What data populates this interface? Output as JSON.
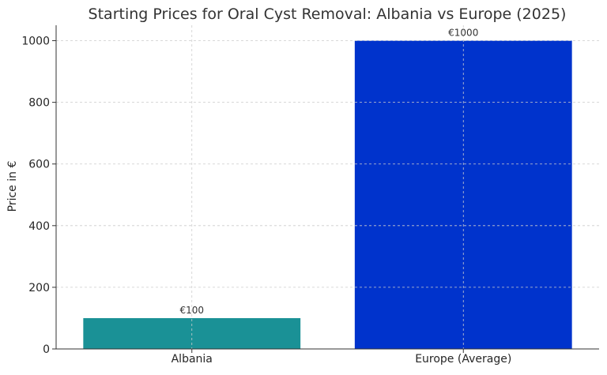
{
  "chart_data": {
    "type": "bar",
    "title": "Starting Prices for Oral Cyst Removal: Albania vs Europe (2025)",
    "xlabel": "",
    "ylabel": "Price in €",
    "categories": [
      "Albania",
      "Europe (Average)"
    ],
    "values": [
      100,
      1000
    ],
    "data_labels": [
      "€100",
      "€1000"
    ],
    "colors": [
      "#1a9196",
      "#0033cc"
    ],
    "ylim": [
      0,
      1050
    ],
    "yticks": [
      0,
      200,
      400,
      600,
      800,
      1000
    ],
    "grid": true
  }
}
